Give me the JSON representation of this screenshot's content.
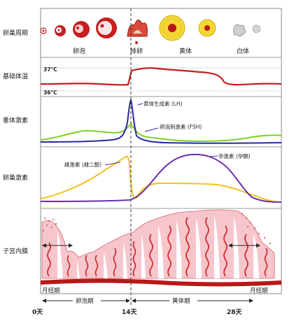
{
  "rows": {
    "ovarian_cycle": "卵巢周期",
    "basal_body_temperature": "基础体温",
    "pituitary_hormones": "垂体激素",
    "ovarian_hormones": "卵巢激素",
    "endometrium": "子宫内膜"
  },
  "ovary_stages": {
    "follicle": "卵泡",
    "ovulation": "排卵",
    "corpus_luteum": "黄体",
    "corpus_albicans": "白体"
  },
  "temperature_marks": {
    "upper": "37°C",
    "lower": "36°C"
  },
  "hormone_labels": {
    "lh": "黄体生成素 (LH)",
    "fsh": "卵泡刺激素 (FSH)",
    "estrogen": "雌激素 (雌二醇)",
    "progesterone": "孕激素 (孕酮)"
  },
  "phase_labels": {
    "menstrual_start": "月经期",
    "menstrual_end": "月经期",
    "follicular_phase": "卵泡期",
    "luteal_phase": "黄体期"
  },
  "day_axis": {
    "ticks": [
      "0天",
      "14天",
      "28天"
    ]
  },
  "colors": {
    "lh": "#2a2aa0",
    "fsh": "#7fcf2a",
    "estrogen": "#f0c020",
    "progesterone": "#6a2da8",
    "temperature": "#c02020",
    "endometrium_fill": "#f7c6cc",
    "endometrium_vessel": "#d02020",
    "corpus_luteum": "#f3d633"
  }
}
